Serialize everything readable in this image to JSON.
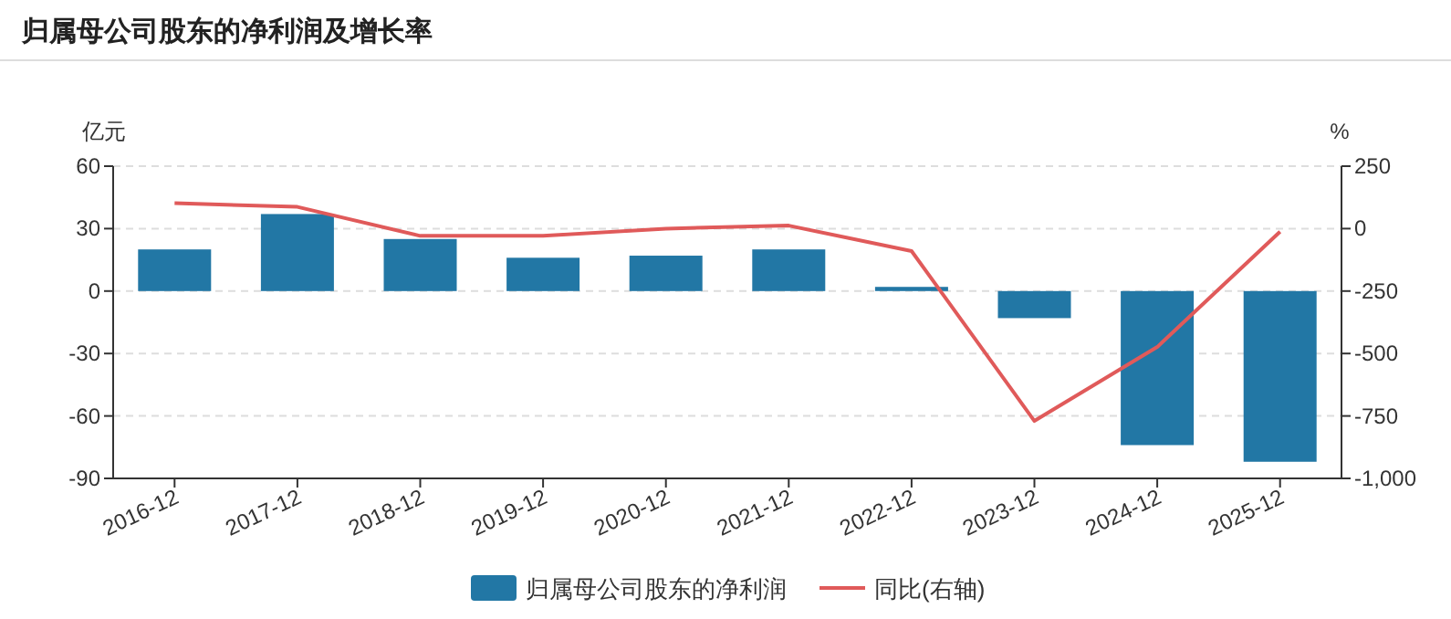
{
  "chart_data": {
    "type": "bar",
    "title": "归属母公司股东的净利润及增长率",
    "ylabel": "亿元",
    "y2label": "%",
    "categories": [
      "2016-12",
      "2017-12",
      "2018-12",
      "2019-12",
      "2020-12",
      "2021-12",
      "2022-12",
      "2023-12",
      "2024-12",
      "2025-12"
    ],
    "series": [
      {
        "name": "归属母公司股东的净利润",
        "color": "#2277a5",
        "values": [
          20,
          37,
          25,
          16,
          17,
          20,
          2,
          -13,
          -74,
          -82
        ]
      },
      {
        "name": "同比(右轴)",
        "type": "line",
        "axis": "y2",
        "color": "#e05a5a",
        "values": [
          102,
          87,
          -29,
          -29,
          0,
          12,
          -90,
          -770,
          -474,
          -12
        ]
      }
    ],
    "ylim": [
      -90,
      60
    ],
    "yticks": [
      -90,
      -60,
      -30,
      0,
      30,
      60
    ],
    "y2lim": [
      -1000,
      250
    ],
    "y2ticks": [
      {
        "value": -1000,
        "label": "-1,000"
      },
      -750,
      -500,
      -250,
      0,
      250
    ],
    "grid": "y",
    "legend": "bottom",
    "marker": "none",
    "line_style": "solid"
  }
}
